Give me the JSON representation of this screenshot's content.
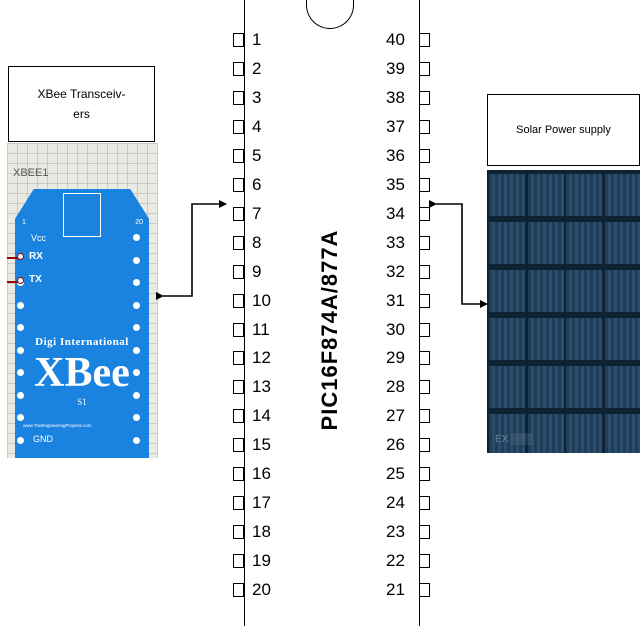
{
  "xbee_label": [
    "XBee Transceiv-",
    "ers"
  ],
  "solar_label": "Solar Power supply",
  "chip_name": "PIC16F874A/877A",
  "left_pins": [
    "1",
    "2",
    "3",
    "4",
    "5",
    "6",
    "7",
    "8",
    "9",
    "10",
    "11",
    "12",
    "13",
    "14",
    "15",
    "16",
    "17",
    "18",
    "19",
    "20"
  ],
  "right_pins": [
    "40",
    "39",
    "38",
    "37",
    "36",
    "35",
    "34",
    "33",
    "32",
    "31",
    "30",
    "29",
    "28",
    "27",
    "26",
    "25",
    "24",
    "23",
    "22",
    "21"
  ],
  "xbee_module": {
    "ref": "XBEE1",
    "vcc": "Vcc",
    "rx": "RX",
    "tx": "TX",
    "pin_first": "1",
    "pin_last": "20",
    "brand": "Digi International",
    "name": "XBee",
    "series": "S1",
    "website": "www.TheEngineeringProjects.com",
    "gnd": "GND"
  }
}
